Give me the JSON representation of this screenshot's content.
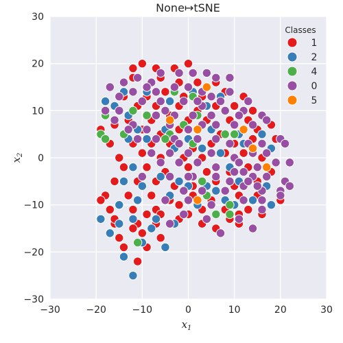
{
  "chart_data": {
    "type": "scatter",
    "title": "None↦tSNE",
    "xlabel": "x",
    "xlabel_sub": "1",
    "ylabel": "x",
    "ylabel_sub": "2",
    "xlim": [
      -30,
      30
    ],
    "ylim": [
      -30,
      30
    ],
    "xticks": [
      -30,
      -20,
      -10,
      0,
      10,
      20,
      30
    ],
    "yticks": [
      -30,
      -20,
      -10,
      0,
      10,
      20,
      30
    ],
    "xtick_labels": [
      "−30",
      "−20",
      "−10",
      "0",
      "10",
      "20",
      "30"
    ],
    "ytick_labels": [
      "−30",
      "−20",
      "−10",
      "0",
      "10",
      "20",
      "30"
    ],
    "grid": true,
    "legend": {
      "title": "Classes",
      "placement": "top-right"
    },
    "series": [
      {
        "name": "1",
        "color": "#e41a1c",
        "points": [
          [
            -12,
            19
          ],
          [
            -10,
            20
          ],
          [
            -7,
            19
          ],
          [
            -3,
            19
          ],
          [
            0,
            20
          ],
          [
            -12,
            17
          ],
          [
            -6,
            17
          ],
          [
            -2,
            16
          ],
          [
            2,
            16
          ],
          [
            6,
            16
          ],
          [
            -14,
            13
          ],
          [
            -9,
            13
          ],
          [
            -5,
            14
          ],
          [
            -1,
            13
          ],
          [
            3,
            13
          ],
          [
            8,
            14
          ],
          [
            12,
            13
          ],
          [
            -11,
            11
          ],
          [
            -7,
            11
          ],
          [
            -2,
            11
          ],
          [
            2,
            10
          ],
          [
            6,
            11
          ],
          [
            10,
            11
          ],
          [
            14,
            10
          ],
          [
            -13,
            8
          ],
          [
            -8,
            8
          ],
          [
            -4,
            9
          ],
          [
            0,
            8
          ],
          [
            4,
            8
          ],
          [
            9,
            8
          ],
          [
            13,
            8
          ],
          [
            18,
            7
          ],
          [
            -19,
            6
          ],
          [
            -16,
            7
          ],
          [
            -10,
            6
          ],
          [
            -6,
            5
          ],
          [
            -2,
            6
          ],
          [
            2,
            6
          ],
          [
            7,
            5
          ],
          [
            12,
            6
          ],
          [
            15,
            6
          ],
          [
            -17,
            3
          ],
          [
            -12,
            3
          ],
          [
            -8,
            3
          ],
          [
            -4,
            3
          ],
          [
            1,
            2
          ],
          [
            5,
            3
          ],
          [
            10,
            3
          ],
          [
            14,
            4
          ],
          [
            19,
            4
          ],
          [
            -15,
            0
          ],
          [
            -10,
            1
          ],
          [
            -6,
            0
          ],
          [
            -1,
            0
          ],
          [
            3,
            0
          ],
          [
            8,
            1
          ],
          [
            12,
            1
          ],
          [
            16,
            0
          ],
          [
            -14,
            -2
          ],
          [
            -9,
            -2
          ],
          [
            -5,
            -3
          ],
          [
            0,
            -2
          ],
          [
            4,
            -3
          ],
          [
            9,
            -3
          ],
          [
            13,
            -2
          ],
          [
            18,
            -3
          ],
          [
            -16,
            -5
          ],
          [
            -11,
            -5
          ],
          [
            -7,
            -5
          ],
          [
            -3,
            -6
          ],
          [
            1,
            -6
          ],
          [
            6,
            -5
          ],
          [
            10,
            -6
          ],
          [
            15,
            -5
          ],
          [
            -18,
            -8
          ],
          [
            -13,
            -8
          ],
          [
            -8,
            -8
          ],
          [
            -4,
            -9
          ],
          [
            1,
            -8
          ],
          [
            5,
            -9
          ],
          [
            11,
            -8
          ],
          [
            15,
            -8
          ],
          [
            20,
            -9
          ],
          [
            -17,
            -11
          ],
          [
            -12,
            -11
          ],
          [
            -7,
            -11
          ],
          [
            -2,
            -10
          ],
          [
            3,
            -11
          ],
          [
            8,
            -11
          ],
          [
            13,
            -11
          ],
          [
            -16,
            -14
          ],
          [
            -11,
            -14
          ],
          [
            -7,
            -14
          ],
          [
            -2,
            -13
          ],
          [
            6,
            -15
          ],
          [
            11,
            -14
          ],
          [
            -15,
            -17
          ],
          [
            -10,
            -16
          ],
          [
            -6,
            -17
          ],
          [
            -14,
            -19
          ],
          [
            -9,
            -19
          ],
          [
            -11,
            -22
          ],
          [
            -14,
            -21
          ],
          [
            9,
            -13
          ],
          [
            -19,
            -9
          ],
          [
            -16,
            -13
          ],
          [
            -12,
            -15
          ],
          [
            -9,
            -12
          ],
          [
            -6,
            -12
          ],
          [
            0,
            -12
          ],
          [
            3,
            -14
          ],
          [
            11,
            -12
          ],
          [
            16,
            -12
          ]
        ]
      },
      {
        "name": "2",
        "color": "#377eb8",
        "points": [
          [
            -18,
            12
          ],
          [
            -16,
            11
          ],
          [
            -14,
            14
          ],
          [
            -13,
            9
          ],
          [
            -9,
            14
          ],
          [
            -4,
            12
          ],
          [
            1,
            14
          ],
          [
            4,
            11
          ],
          [
            7,
            13
          ],
          [
            -11,
            6
          ],
          [
            -13,
            4
          ],
          [
            -9,
            4
          ],
          [
            -5,
            6
          ],
          [
            0,
            4
          ],
          [
            5,
            6
          ],
          [
            11,
            5
          ],
          [
            16,
            5
          ],
          [
            -12,
            -2
          ],
          [
            -8,
            1
          ],
          [
            -3,
            2
          ],
          [
            3,
            2
          ],
          [
            7,
            1
          ],
          [
            12,
            3
          ],
          [
            18,
            2
          ],
          [
            -14,
            -5
          ],
          [
            -10,
            -6
          ],
          [
            -6,
            -4
          ],
          [
            0,
            -6
          ],
          [
            6,
            -7
          ],
          [
            11,
            -5
          ],
          [
            17,
            -6
          ],
          [
            -15,
            -10
          ],
          [
            -11,
            -9
          ],
          [
            -4,
            -8
          ],
          [
            2,
            -10
          ],
          [
            8,
            -9
          ],
          [
            14,
            -9
          ],
          [
            -19,
            -13
          ],
          [
            -15,
            -14
          ],
          [
            -12,
            -13
          ],
          [
            -8,
            -15
          ],
          [
            -3,
            -14
          ],
          [
            -17,
            -16
          ],
          [
            -10,
            -18
          ],
          [
            -14,
            -21
          ],
          [
            -12,
            -25
          ],
          [
            -5,
            -19
          ],
          [
            10,
            -10
          ],
          [
            18,
            -10
          ],
          [
            -2,
            -5
          ],
          [
            9,
            -2
          ],
          [
            4,
            -6
          ],
          [
            -7,
            -13
          ]
        ]
      },
      {
        "name": "4",
        "color": "#4daf4a",
        "points": [
          [
            -18,
            9
          ],
          [
            -9,
            9
          ],
          [
            -12,
            10
          ],
          [
            -19,
            5
          ],
          [
            -18,
            4
          ],
          [
            -4,
            5
          ],
          [
            -1,
            7
          ],
          [
            1,
            3
          ],
          [
            -14,
            5
          ],
          [
            -11,
            -18
          ],
          [
            -5,
            4
          ],
          [
            2,
            9
          ],
          [
            10,
            5
          ],
          [
            6,
            -12
          ],
          [
            8,
            5
          ],
          [
            9,
            -10
          ],
          [
            1,
            13
          ],
          [
            4,
            -8
          ],
          [
            -3,
            14
          ],
          [
            3,
            -5
          ],
          [
            9,
            -12
          ]
        ]
      },
      {
        "name": "0",
        "color": "#984ea3",
        "points": [
          [
            -17,
            15
          ],
          [
            -14,
            16
          ],
          [
            -11,
            17
          ],
          [
            -8,
            16
          ],
          [
            -6,
            18
          ],
          [
            -2,
            18
          ],
          [
            1,
            18
          ],
          [
            4,
            18
          ],
          [
            6,
            17
          ],
          [
            9,
            17
          ],
          [
            -15,
            13
          ],
          [
            -12,
            14
          ],
          [
            -7,
            14
          ],
          [
            -3,
            15
          ],
          [
            0,
            15
          ],
          [
            3,
            14
          ],
          [
            5,
            13
          ],
          [
            9,
            14
          ],
          [
            -18,
            10
          ],
          [
            -15,
            10
          ],
          [
            -10,
            12
          ],
          [
            -6,
            12
          ],
          [
            -1,
            12
          ],
          [
            3,
            11
          ],
          [
            7,
            12
          ],
          [
            12,
            10
          ],
          [
            -16,
            8
          ],
          [
            -12,
            7
          ],
          [
            -7,
            9
          ],
          [
            -3,
            9
          ],
          [
            1,
            9
          ],
          [
            5,
            9
          ],
          [
            8,
            10
          ],
          [
            11,
            9
          ],
          [
            16,
            9
          ],
          [
            -13,
            6
          ],
          [
            -9,
            6
          ],
          [
            -4,
            7
          ],
          [
            0,
            6
          ],
          [
            3,
            7
          ],
          [
            6,
            7
          ],
          [
            10,
            7
          ],
          [
            14,
            7
          ],
          [
            17,
            8
          ],
          [
            -11,
            4
          ],
          [
            -7,
            4
          ],
          [
            -3,
            4
          ],
          [
            2,
            4
          ],
          [
            6,
            4
          ],
          [
            9,
            3
          ],
          [
            13,
            3
          ],
          [
            16,
            3
          ],
          [
            20,
            4
          ],
          [
            -8,
            1
          ],
          [
            -4,
            1
          ],
          [
            0,
            1
          ],
          [
            5,
            1
          ],
          [
            10,
            0
          ],
          [
            14,
            1
          ],
          [
            17,
            1
          ],
          [
            21,
            3
          ],
          [
            -6,
            -1
          ],
          [
            -2,
            -1
          ],
          [
            2,
            -1
          ],
          [
            6,
            -2
          ],
          [
            11,
            -1
          ],
          [
            15,
            -2
          ],
          [
            19,
            -1
          ],
          [
            22,
            -1
          ],
          [
            -4,
            -4
          ],
          [
            1,
            -4
          ],
          [
            6,
            -4
          ],
          [
            10,
            -3
          ],
          [
            14,
            -4
          ],
          [
            17,
            -4
          ],
          [
            21,
            -5
          ],
          [
            -1,
            -7
          ],
          [
            3,
            -7
          ],
          [
            8,
            -7
          ],
          [
            12,
            -6
          ],
          [
            16,
            -7
          ],
          [
            20,
            -7
          ],
          [
            22,
            -6
          ],
          [
            -5,
            -9
          ],
          [
            0,
            -9
          ],
          [
            5,
            -10
          ],
          [
            12,
            -9
          ],
          [
            16,
            -9
          ],
          [
            20,
            -8
          ],
          [
            -4,
            -14
          ],
          [
            4,
            -13
          ],
          [
            11,
            -13
          ],
          [
            16,
            -11
          ],
          [
            7,
            -16
          ],
          [
            14,
            -15
          ],
          [
            -1,
            -12
          ],
          [
            9,
            -5
          ],
          [
            13,
            -5
          ],
          [
            -2,
            3
          ],
          [
            -10,
            -4
          ],
          [
            0,
            -4
          ],
          [
            12,
            -3
          ],
          [
            15,
            -6
          ],
          [
            13,
            12
          ],
          [
            -5,
            10
          ],
          [
            2,
            12
          ],
          [
            -9,
            15
          ]
        ]
      },
      {
        "name": "5",
        "color": "#ff7f00",
        "points": [
          [
            4,
            15
          ],
          [
            -4,
            8
          ],
          [
            2,
            6
          ],
          [
            12,
            6
          ],
          [
            14,
            2
          ],
          [
            17,
            -2
          ],
          [
            2,
            -9
          ]
        ]
      }
    ]
  }
}
